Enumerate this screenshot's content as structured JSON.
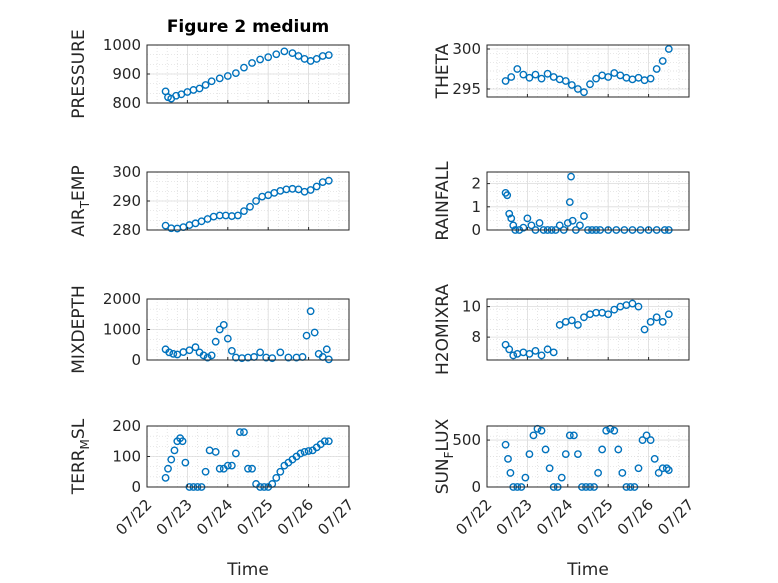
{
  "chart_data": [
    {
      "type": "scatter",
      "title": "Figure 2 medium",
      "ylabel": [
        "PRESSURE",
        ""
      ],
      "ylim": [
        800,
        1000
      ],
      "yticks": [
        800,
        900,
        1000
      ],
      "xlim": [
        0,
        5
      ],
      "xticks": [],
      "color": "#0072BD",
      "series": [
        {
          "x": [
            0.46,
            0.52,
            0.6,
            0.72,
            0.85,
            1.0,
            1.15,
            1.3,
            1.45,
            1.6,
            1.8,
            2.0,
            2.2,
            2.4,
            2.6,
            2.8,
            3.0,
            3.2,
            3.4,
            3.6,
            3.75,
            3.9,
            4.05,
            4.2,
            4.35,
            4.5
          ],
          "values": [
            840,
            820,
            815,
            825,
            830,
            838,
            845,
            850,
            862,
            875,
            885,
            893,
            903,
            922,
            938,
            950,
            958,
            968,
            978,
            972,
            962,
            952,
            945,
            952,
            962,
            965
          ]
        }
      ]
    },
    {
      "type": "scatter",
      "title": "",
      "ylabel": [
        "THETA",
        ""
      ],
      "ylim": [
        294,
        300.5
      ],
      "yticks": [
        295,
        300
      ],
      "xlim": [
        0,
        5
      ],
      "xticks": [],
      "color": "#0072BD",
      "series": [
        {
          "x": [
            0.46,
            0.6,
            0.75,
            0.9,
            1.05,
            1.2,
            1.35,
            1.5,
            1.65,
            1.8,
            1.95,
            2.1,
            2.25,
            2.4,
            2.55,
            2.7,
            2.85,
            3.0,
            3.15,
            3.3,
            3.45,
            3.6,
            3.75,
            3.9,
            4.05,
            4.2,
            4.35,
            4.5
          ],
          "values": [
            296.0,
            296.5,
            297.5,
            296.8,
            296.4,
            296.8,
            296.3,
            296.9,
            296.5,
            296.2,
            296.0,
            295.5,
            295.0,
            294.6,
            295.6,
            296.3,
            296.7,
            296.5,
            297.0,
            296.7,
            296.4,
            296.2,
            296.4,
            296.1,
            296.3,
            297.5,
            298.5,
            300.0
          ]
        }
      ]
    },
    {
      "type": "scatter",
      "title": "",
      "ylabel": [
        "AIR",
        "T",
        "EMP"
      ],
      "ylim": [
        280,
        300
      ],
      "yticks": [
        280,
        290,
        300
      ],
      "xlim": [
        0,
        5
      ],
      "xticks": [],
      "color": "#0072BD",
      "series": [
        {
          "x": [
            0.46,
            0.6,
            0.75,
            0.9,
            1.05,
            1.2,
            1.35,
            1.5,
            1.65,
            1.8,
            1.95,
            2.1,
            2.25,
            2.4,
            2.55,
            2.7,
            2.85,
            3.0,
            3.15,
            3.3,
            3.45,
            3.6,
            3.75,
            3.9,
            4.05,
            4.2,
            4.35,
            4.5
          ],
          "values": [
            281.5,
            280.6,
            280.5,
            281.0,
            281.7,
            282.3,
            283.0,
            283.8,
            284.6,
            285.0,
            285.0,
            284.8,
            285.0,
            286.5,
            288.0,
            290.0,
            291.5,
            292.0,
            292.8,
            293.5,
            294.0,
            294.2,
            294.0,
            293.2,
            293.8,
            295.0,
            296.5,
            297.0
          ]
        }
      ]
    },
    {
      "type": "scatter",
      "title": "",
      "ylabel": [
        "RAINFALL",
        ""
      ],
      "ylim": [
        0,
        2.5
      ],
      "yticks": [
        0,
        1,
        2
      ],
      "xlim": [
        0,
        5
      ],
      "xticks": [],
      "color": "#0072BD",
      "series": [
        {
          "x": [
            0.46,
            0.5,
            0.55,
            0.6,
            0.65,
            0.7,
            0.8,
            0.9,
            1.0,
            1.1,
            1.2,
            1.3,
            1.4,
            1.5,
            1.6,
            1.7,
            1.8,
            1.9,
            2.0,
            2.05,
            2.08,
            2.12,
            2.2,
            2.3,
            2.4,
            2.5,
            2.6,
            2.7,
            2.8,
            3.0,
            3.2,
            3.4,
            3.6,
            3.8,
            4.0,
            4.2,
            4.4,
            4.5
          ],
          "values": [
            1.6,
            1.5,
            0.7,
            0.5,
            0.2,
            0.0,
            0.0,
            0.1,
            0.5,
            0.2,
            0.0,
            0.3,
            0.0,
            0.0,
            0.0,
            0.0,
            0.2,
            0.0,
            0.3,
            1.2,
            2.3,
            0.4,
            0.0,
            0.2,
            0.6,
            0.0,
            0.0,
            0.0,
            0.0,
            0.0,
            0.0,
            0.0,
            0.0,
            0.0,
            0.0,
            0.0,
            0.0,
            0.0
          ]
        }
      ]
    },
    {
      "type": "scatter",
      "title": "",
      "ylabel": [
        "MIXDEPTH",
        ""
      ],
      "ylim": [
        0,
        2000
      ],
      "yticks": [
        0,
        1000,
        2000
      ],
      "xlim": [
        0,
        5
      ],
      "xticks": [],
      "color": "#0072BD",
      "series": [
        {
          "x": [
            0.46,
            0.55,
            0.65,
            0.75,
            0.9,
            1.05,
            1.2,
            1.3,
            1.4,
            1.5,
            1.6,
            1.7,
            1.8,
            1.9,
            2.0,
            2.1,
            2.2,
            2.35,
            2.5,
            2.65,
            2.8,
            2.95,
            3.1,
            3.3,
            3.5,
            3.7,
            3.85,
            3.95,
            4.05,
            4.15,
            4.25,
            4.35,
            4.45,
            4.5
          ],
          "values": [
            350,
            250,
            200,
            180,
            260,
            320,
            420,
            250,
            150,
            80,
            150,
            600,
            1000,
            1150,
            700,
            300,
            80,
            60,
            80,
            100,
            250,
            80,
            60,
            250,
            80,
            80,
            100,
            800,
            1600,
            900,
            200,
            100,
            350,
            20
          ]
        }
      ]
    },
    {
      "type": "scatter",
      "title": "",
      "ylabel": [
        "H2OMIXRA",
        ""
      ],
      "ylim": [
        6.5,
        10.5
      ],
      "yticks": [
        8,
        10
      ],
      "xlim": [
        0,
        5
      ],
      "xticks": [],
      "color": "#0072BD",
      "series": [
        {
          "x": [
            0.46,
            0.55,
            0.65,
            0.75,
            0.9,
            1.05,
            1.2,
            1.35,
            1.5,
            1.65,
            1.8,
            1.95,
            2.1,
            2.25,
            2.4,
            2.55,
            2.7,
            2.85,
            3.0,
            3.15,
            3.3,
            3.45,
            3.6,
            3.75,
            3.9,
            4.05,
            4.2,
            4.35,
            4.5
          ],
          "values": [
            7.5,
            7.2,
            6.8,
            6.9,
            7.0,
            6.9,
            7.1,
            6.8,
            7.2,
            7.0,
            8.8,
            9.0,
            9.1,
            8.8,
            9.3,
            9.5,
            9.6,
            9.6,
            9.5,
            9.8,
            10.0,
            10.1,
            10.2,
            10.0,
            8.5,
            9.0,
            9.3,
            9.0,
            9.5
          ]
        }
      ]
    },
    {
      "type": "scatter",
      "title": "",
      "ylabel": [
        "TERR",
        "M",
        "SL"
      ],
      "ylim": [
        0,
        200
      ],
      "yticks": [
        0,
        100,
        200
      ],
      "xlim": [
        0,
        5
      ],
      "xticks": [
        "07/22",
        "07/23",
        "07/24",
        "07/25",
        "07/26",
        "07/27"
      ],
      "xlabel": "Time",
      "color": "#0072BD",
      "series": [
        {
          "x": [
            0.46,
            0.52,
            0.6,
            0.68,
            0.75,
            0.82,
            0.88,
            0.95,
            1.05,
            1.15,
            1.25,
            1.35,
            1.45,
            1.55,
            1.7,
            1.8,
            1.9,
            2.0,
            2.1,
            2.2,
            2.3,
            2.4,
            2.5,
            2.6,
            2.7,
            2.8,
            2.9,
            3.0,
            3.1,
            3.2,
            3.3,
            3.4,
            3.5,
            3.6,
            3.7,
            3.8,
            3.9,
            4.0,
            4.1,
            4.2,
            4.3,
            4.4,
            4.5
          ],
          "values": [
            30,
            60,
            90,
            120,
            150,
            160,
            150,
            80,
            0,
            0,
            0,
            0,
            50,
            120,
            115,
            60,
            60,
            70,
            70,
            110,
            180,
            180,
            60,
            60,
            10,
            0,
            0,
            0,
            10,
            30,
            50,
            70,
            80,
            90,
            100,
            110,
            115,
            118,
            120,
            130,
            140,
            150,
            150
          ]
        }
      ]
    },
    {
      "type": "scatter",
      "title": "",
      "ylabel": [
        "SUN",
        "F",
        "LUX"
      ],
      "ylim": [
        0,
        650
      ],
      "yticks": [
        0,
        500
      ],
      "xlim": [
        0,
        5
      ],
      "xticks": [
        "07/22",
        "07/23",
        "07/24",
        "07/25",
        "07/26",
        "07/27"
      ],
      "xlabel": "Time",
      "color": "#0072BD",
      "series": [
        {
          "x": [
            0.46,
            0.52,
            0.58,
            0.65,
            0.75,
            0.85,
            0.95,
            1.05,
            1.15,
            1.25,
            1.35,
            1.45,
            1.55,
            1.65,
            1.75,
            1.85,
            1.95,
            2.05,
            2.15,
            2.25,
            2.35,
            2.45,
            2.55,
            2.65,
            2.75,
            2.85,
            2.95,
            3.05,
            3.15,
            3.25,
            3.35,
            3.45,
            3.55,
            3.65,
            3.75,
            3.85,
            3.95,
            4.05,
            4.15,
            4.25,
            4.35,
            4.45,
            4.5
          ],
          "values": [
            450,
            300,
            150,
            0,
            0,
            0,
            100,
            350,
            550,
            620,
            600,
            400,
            200,
            0,
            0,
            100,
            350,
            550,
            550,
            350,
            0,
            0,
            0,
            0,
            150,
            400,
            600,
            620,
            600,
            400,
            150,
            0,
            0,
            0,
            200,
            500,
            550,
            500,
            300,
            150,
            200,
            200,
            180
          ]
        }
      ]
    }
  ]
}
